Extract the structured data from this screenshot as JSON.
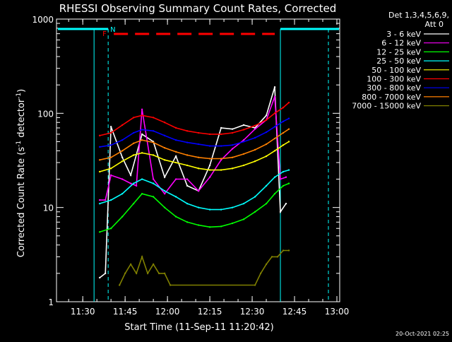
{
  "chart_data": {
    "type": "line",
    "title": "RHESSI Observing Summary Count Rates, Corrected",
    "xlabel": "Start Time (11-Sep-11 11:20:42)",
    "ylabel_main": "Corrected Count Rate (s",
    "ylabel_sup1": "-1",
    "ylabel_mid": " detector",
    "ylabel_sup2": "-1",
    "ylabel_end": ")",
    "yscale": "log",
    "xlim": [
      "11:20:42",
      "13:01:00"
    ],
    "ylim": [
      1,
      1000
    ],
    "x_ticks": [
      "11:30",
      "11:45",
      "12:00",
      "12:15",
      "12:30",
      "12:45",
      "13:00"
    ],
    "y_ticks": [
      "1",
      "10",
      "100",
      "1000"
    ],
    "legend_header": [
      "Det 1,3,4,5,6,9,",
      "Att 0"
    ],
    "legend_placement": "right",
    "series": [
      {
        "name": "3 - 6 keV",
        "color": "#ffffff",
        "x": [
          "11:36",
          "11:38",
          "11:40",
          "11:44",
          "11:47",
          "11:51",
          "11:55",
          "11:59",
          "12:03",
          "12:07",
          "12:11",
          "12:15",
          "12:19",
          "12:23",
          "12:27",
          "12:31",
          "12:35",
          "12:38",
          "12:40",
          "12:42"
        ],
        "values": [
          1.8,
          2,
          72,
          34,
          22,
          60,
          50,
          21,
          35,
          17,
          15,
          28,
          70,
          68,
          75,
          70,
          95,
          190,
          9,
          11
        ]
      },
      {
        "name": "6 - 12 keV",
        "color": "#ff00ff",
        "x": [
          "11:36",
          "11:38",
          "11:40",
          "11:44",
          "11:47",
          "11:49",
          "11:51",
          "11:55",
          "11:59",
          "12:03",
          "12:07",
          "12:11",
          "12:15",
          "12:19",
          "12:23",
          "12:27",
          "12:31",
          "12:35",
          "12:38",
          "12:40",
          "12:42"
        ],
        "values": [
          12,
          12,
          22,
          20,
          18,
          17,
          110,
          20,
          14,
          20,
          20,
          15,
          21,
          32,
          42,
          52,
          68,
          85,
          150,
          20,
          21
        ]
      },
      {
        "name": "12 - 25 keV",
        "color": "#00ff00",
        "x": [
          "11:36",
          "11:40",
          "11:44",
          "11:48",
          "11:51",
          "11:55",
          "11:59",
          "12:03",
          "12:07",
          "12:11",
          "12:15",
          "12:19",
          "12:23",
          "12:27",
          "12:31",
          "12:35",
          "12:38",
          "12:41",
          "12:43"
        ],
        "values": [
          5.5,
          6,
          8,
          11,
          14,
          13,
          10,
          8,
          7,
          6.5,
          6.2,
          6.3,
          6.8,
          7.5,
          9,
          11,
          14,
          17,
          18
        ]
      },
      {
        "name": "25 - 50 keV",
        "color": "#00ffff",
        "x": [
          "11:36",
          "11:40",
          "11:44",
          "11:48",
          "11:51",
          "11:55",
          "11:59",
          "12:03",
          "12:07",
          "12:11",
          "12:15",
          "12:19",
          "12:23",
          "12:27",
          "12:31",
          "12:35",
          "12:38",
          "12:41",
          "12:43"
        ],
        "values": [
          11,
          12,
          14,
          18,
          20,
          18,
          15,
          13,
          11,
          10,
          9.5,
          9.5,
          10,
          11,
          13,
          17,
          21,
          24,
          25
        ]
      },
      {
        "name": "50 - 100 keV",
        "color": "#ffff00",
        "x": [
          "11:36",
          "11:40",
          "11:44",
          "11:48",
          "11:51",
          "11:55",
          "11:59",
          "12:03",
          "12:07",
          "12:11",
          "12:15",
          "12:19",
          "12:23",
          "12:27",
          "12:31",
          "12:35",
          "12:38",
          "12:41",
          "12:43"
        ],
        "values": [
          24,
          26,
          31,
          36,
          38,
          36,
          32,
          30,
          28,
          26,
          25,
          25,
          26,
          28,
          31,
          35,
          40,
          46,
          50
        ]
      },
      {
        "name": "100 - 300 keV",
        "color": "#ff0000",
        "x": [
          "11:36",
          "11:40",
          "11:44",
          "11:48",
          "11:51",
          "11:55",
          "11:59",
          "12:03",
          "12:07",
          "12:11",
          "12:15",
          "12:19",
          "12:23",
          "12:27",
          "12:31",
          "12:35",
          "12:38",
          "12:41",
          "12:43"
        ],
        "values": [
          58,
          62,
          75,
          90,
          95,
          90,
          80,
          70,
          65,
          62,
          60,
          60,
          62,
          67,
          74,
          85,
          100,
          115,
          130
        ]
      },
      {
        "name": "300 - 800 keV",
        "color": "#0000ff",
        "x": [
          "11:36",
          "11:40",
          "11:44",
          "11:48",
          "11:51",
          "11:55",
          "11:59",
          "12:03",
          "12:07",
          "12:11",
          "12:15",
          "12:19",
          "12:23",
          "12:27",
          "12:31",
          "12:35",
          "12:38",
          "12:41",
          "12:43"
        ],
        "values": [
          44,
          46,
          52,
          62,
          67,
          65,
          58,
          52,
          49,
          47,
          45,
          45,
          46,
          50,
          55,
          63,
          72,
          82,
          88
        ]
      },
      {
        "name": "800 - 7000 keV",
        "color": "#ff8000",
        "x": [
          "11:36",
          "11:40",
          "11:44",
          "11:48",
          "11:51",
          "11:55",
          "11:59",
          "12:03",
          "12:07",
          "12:11",
          "12:15",
          "12:19",
          "12:23",
          "12:27",
          "12:31",
          "12:35",
          "12:38",
          "12:41",
          "12:43"
        ],
        "values": [
          32,
          34,
          40,
          48,
          52,
          49,
          43,
          39,
          36,
          34,
          33,
          33,
          34,
          37,
          41,
          47,
          54,
          62,
          68
        ]
      },
      {
        "name": "7000 - 15000 keV",
        "color": "#808000",
        "x": [
          "11:43",
          "11:45",
          "11:47",
          "11:49",
          "11:51",
          "11:53",
          "11:55",
          "11:57",
          "11:59",
          "12:01",
          "12:31",
          "12:33",
          "12:35",
          "12:37",
          "12:39",
          "12:41",
          "12:43"
        ],
        "values": [
          1.5,
          2,
          2.5,
          2,
          3,
          2,
          2.5,
          2,
          2,
          1.5,
          1.5,
          2,
          2.5,
          3,
          3,
          3.5,
          3.5
        ]
      }
    ],
    "flag_labels": {
      "F": "F",
      "N": "N"
    },
    "footer_timestamp": "20-Oct-2021 02:25"
  }
}
